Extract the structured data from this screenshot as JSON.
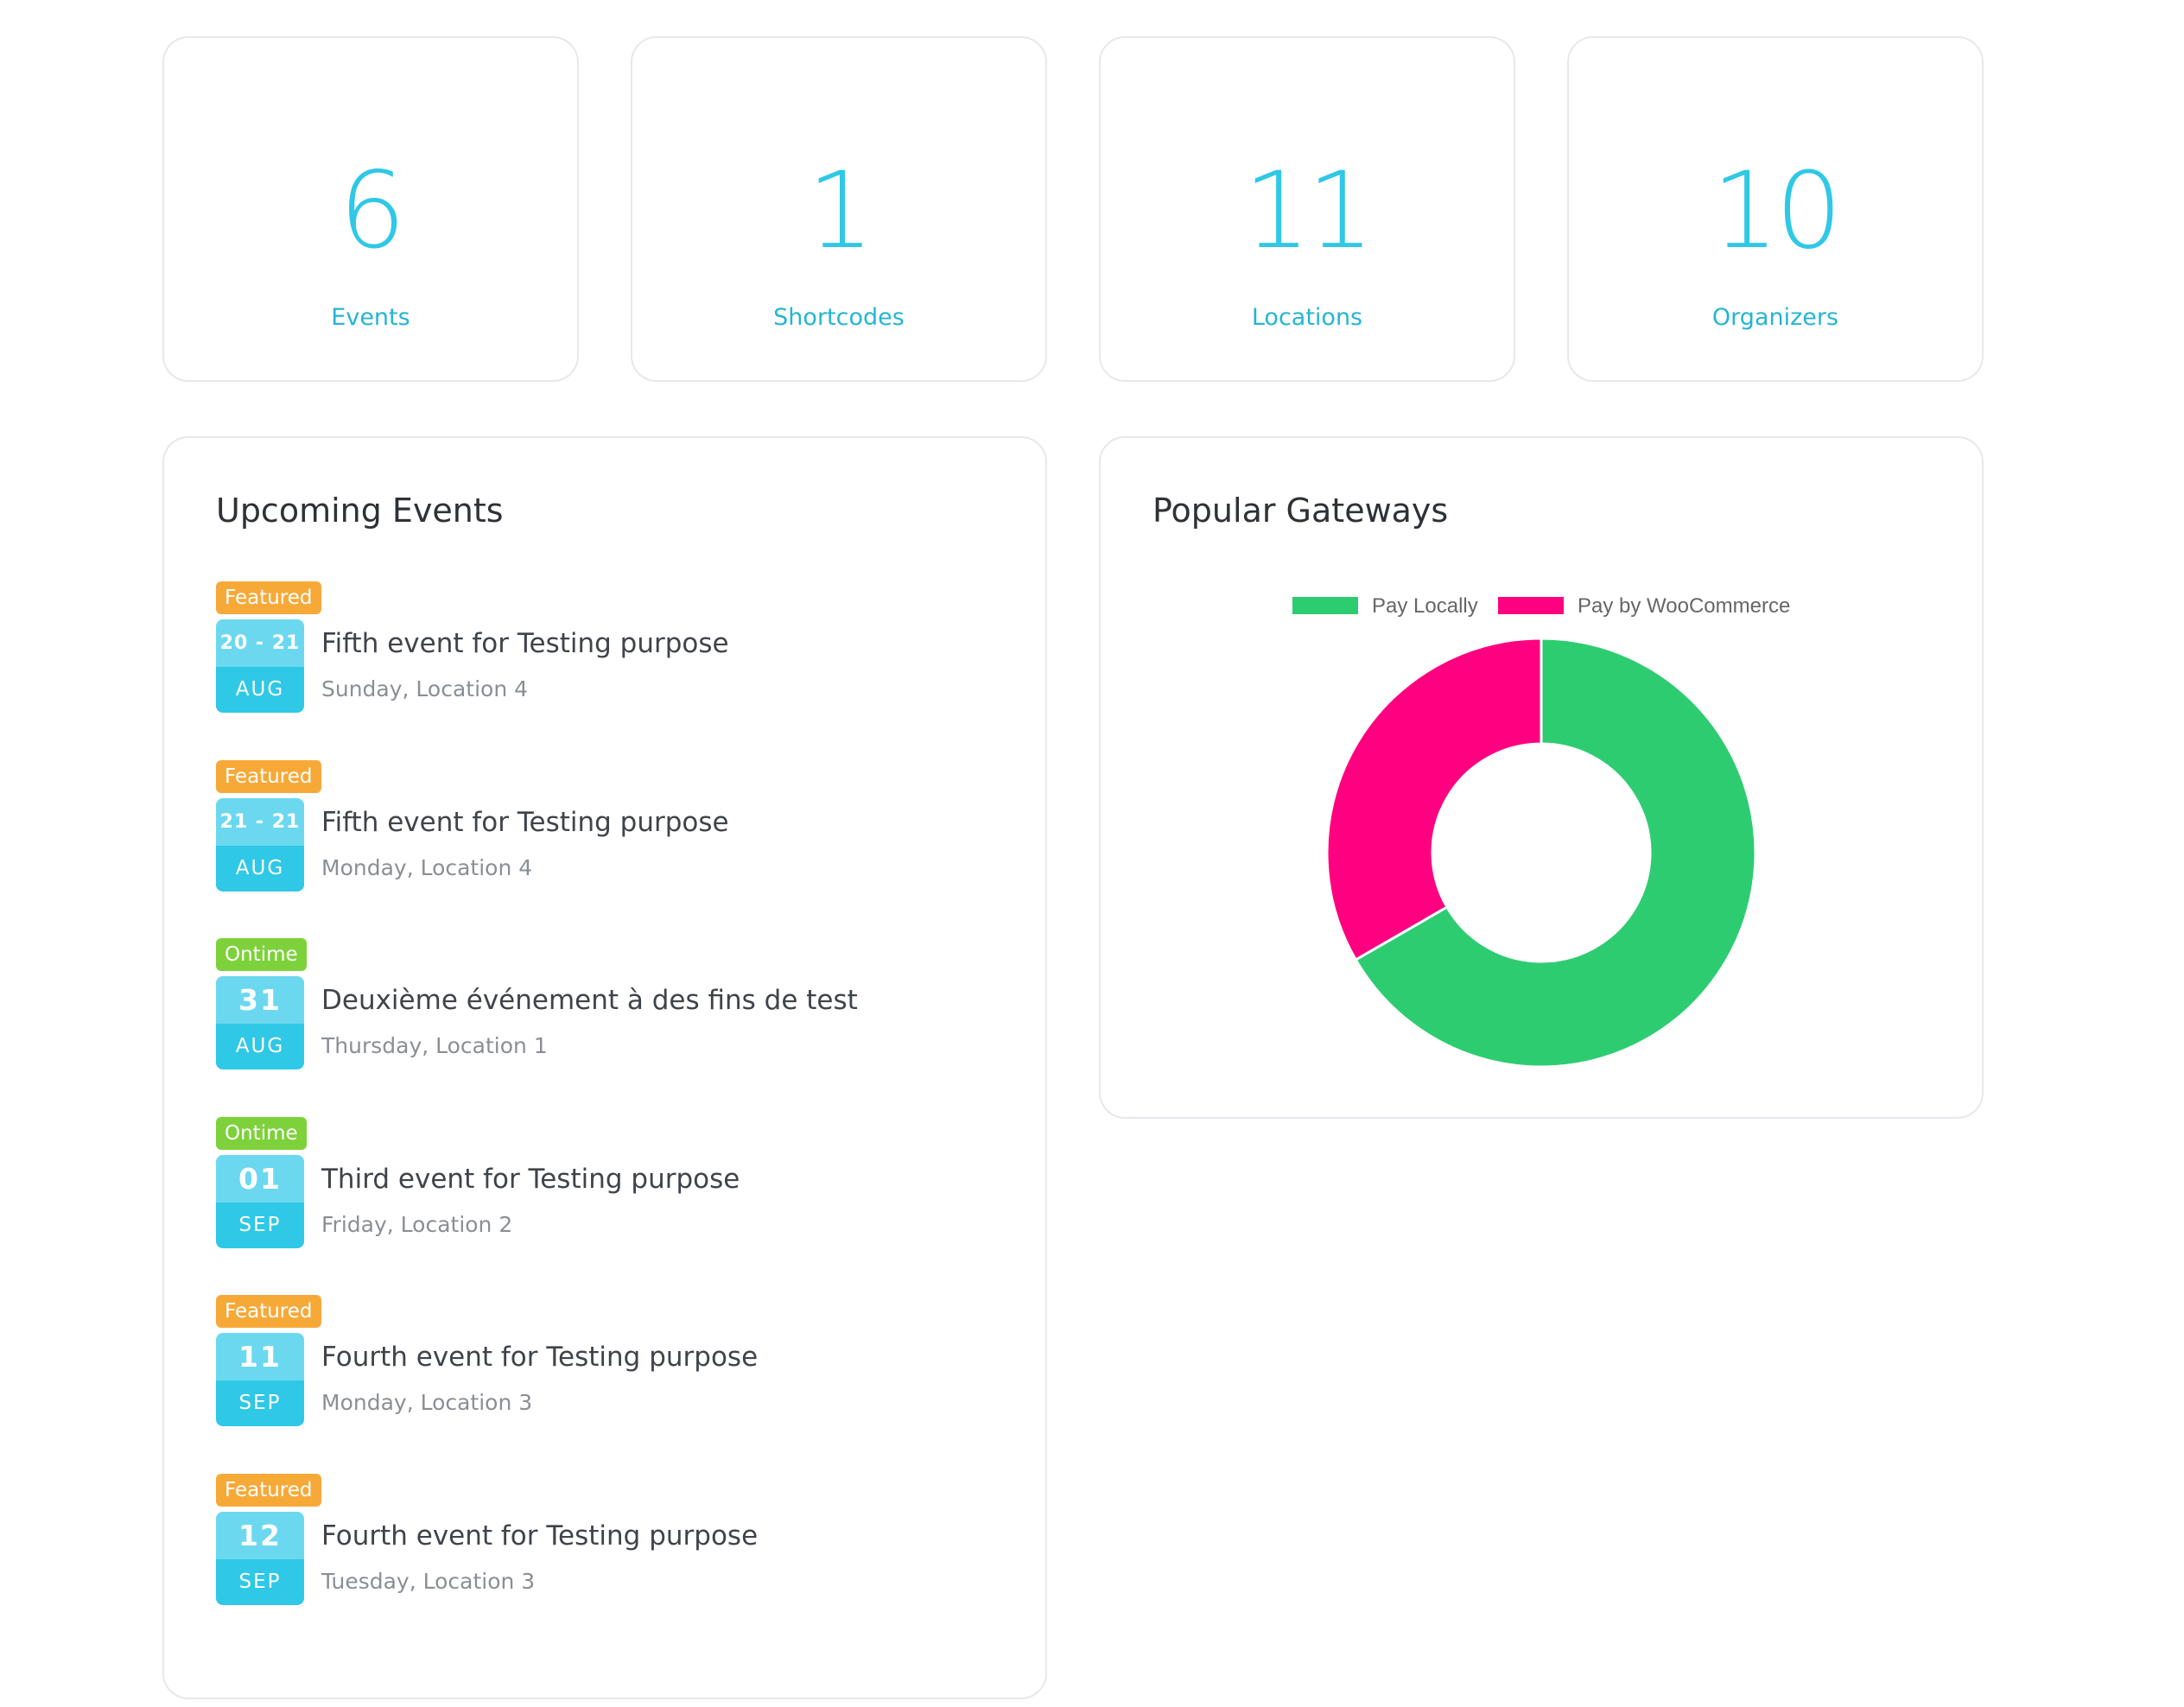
{
  "stats": [
    {
      "value": "6",
      "label": "Events"
    },
    {
      "value": "1",
      "label": "Shortcodes"
    },
    {
      "value": "11",
      "label": "Locations"
    },
    {
      "value": "10",
      "label": "Organizers"
    }
  ],
  "upcoming": {
    "title": "Upcoming Events",
    "events": [
      {
        "badge": "Featured",
        "badge_color": "#f7a938",
        "day": "20 - 21",
        "month": "AUG",
        "title": "Fifth event for Testing purpose",
        "sub": "Sunday, Location 4"
      },
      {
        "badge": "Featured",
        "badge_color": "#f7a938",
        "day": "21 - 21",
        "month": "AUG",
        "title": "Fifth event for Testing purpose",
        "sub": "Monday, Location 4"
      },
      {
        "badge": "Ontime",
        "badge_color": "#7dd13a",
        "day": "31",
        "month": "AUG",
        "title": "Deuxième événement à des fins de test",
        "sub": "Thursday, Location 1"
      },
      {
        "badge": "Ontime",
        "badge_color": "#7dd13a",
        "day": "01",
        "month": "SEP",
        "title": "Third event for Testing purpose",
        "sub": "Friday, Location 2"
      },
      {
        "badge": "Featured",
        "badge_color": "#f7a938",
        "day": "11",
        "month": "SEP",
        "title": "Fourth event for Testing purpose",
        "sub": "Monday, Location 3"
      },
      {
        "badge": "Featured",
        "badge_color": "#f7a938",
        "day": "12",
        "month": "SEP",
        "title": "Fourth event for Testing purpose",
        "sub": "Tuesday, Location 3"
      }
    ]
  },
  "gateways": {
    "title": "Popular Gateways",
    "legend": [
      {
        "label": "Pay Locally",
        "color": "#2ecc71"
      },
      {
        "label": "Pay by WooCommerce",
        "color": "#ff0080"
      }
    ]
  },
  "chart_data": {
    "type": "pie",
    "donut": true,
    "categories": [
      "Pay Locally",
      "Pay by WooCommerce"
    ],
    "values": [
      2,
      1
    ],
    "colors": [
      "#2ecc71",
      "#ff0080"
    ],
    "legend": "top"
  }
}
